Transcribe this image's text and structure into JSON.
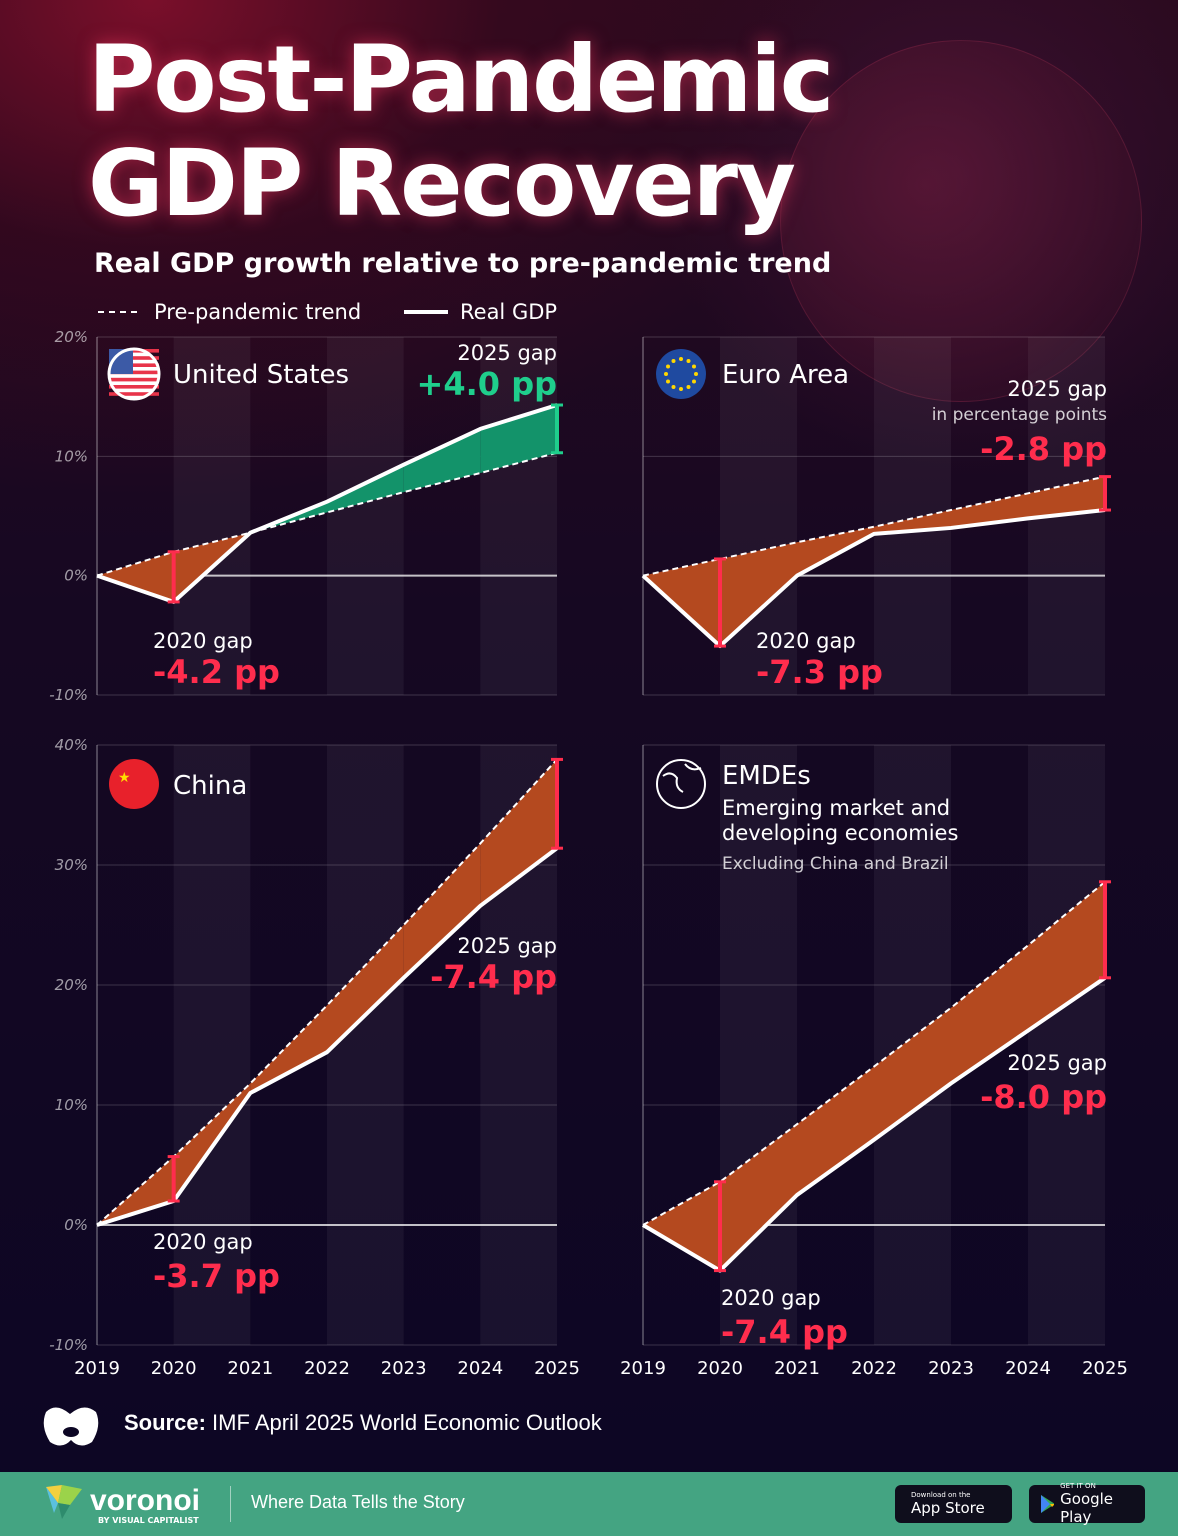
{
  "header": {
    "title_line1": "Post-Pandemic",
    "title_line2": "GDP Recovery",
    "subtitle": "Real GDP growth relative to pre-pandemic trend"
  },
  "legend": {
    "trend": "Pre-pandemic trend",
    "real": "Real GDP"
  },
  "colors": {
    "negative_gap": "#ff2d4d",
    "positive_gap": "#1fce8c",
    "negative_fill": "#b4491f",
    "positive_fill": "#13936a",
    "line": "#ffffff",
    "footer": "#44a482"
  },
  "chart_data": [
    {
      "type": "area",
      "title": "United States",
      "icon": "us-flag-icon",
      "years": [
        "2019",
        "2020",
        "2021",
        "2022",
        "2023",
        "2024",
        "2025"
      ],
      "ylim": [
        -10,
        20
      ],
      "yticks": [
        "-10%",
        "0%",
        "10%",
        "20%"
      ],
      "show_xticks": false,
      "series": [
        {
          "name": "Pre-pandemic trend",
          "style": "dashed",
          "values": [
            0,
            2.0,
            3.6,
            5.3,
            7.0,
            8.6,
            10.3
          ]
        },
        {
          "name": "Real GDP",
          "style": "solid",
          "values": [
            0,
            -2.2,
            3.6,
            6.2,
            9.3,
            12.3,
            14.3
          ]
        }
      ],
      "annotations": {
        "gap2020_label": "2020 gap",
        "gap2020_value": "-4.2 pp",
        "gap2025_label": "2025 gap",
        "gap2025_value": "+4.0 pp"
      }
    },
    {
      "type": "area",
      "title": "Euro Area",
      "icon": "eu-flag-icon",
      "years": [
        "2019",
        "2020",
        "2021",
        "2022",
        "2023",
        "2024",
        "2025"
      ],
      "ylim": [
        -10,
        20
      ],
      "yticks": [],
      "show_xticks": false,
      "series": [
        {
          "name": "Pre-pandemic trend",
          "style": "dashed",
          "values": [
            0,
            1.4,
            2.8,
            4.1,
            5.5,
            6.9,
            8.3
          ]
        },
        {
          "name": "Real GDP",
          "style": "solid",
          "values": [
            0,
            -5.9,
            0.0,
            3.5,
            4.0,
            4.8,
            5.5
          ]
        }
      ],
      "annotations": {
        "gap2020_label": "2020 gap",
        "gap2020_value": "-7.3 pp",
        "gap2025_label": "2025 gap",
        "gap2025_note": "in percentage points",
        "gap2025_value": "-2.8 pp"
      }
    },
    {
      "type": "area",
      "title": "China",
      "icon": "china-flag-icon",
      "years": [
        "2019",
        "2020",
        "2021",
        "2022",
        "2023",
        "2024",
        "2025"
      ],
      "ylim": [
        -10,
        40
      ],
      "yticks": [
        "-10%",
        "0%",
        "10%",
        "20%",
        "30%",
        "40%"
      ],
      "show_xticks": true,
      "series": [
        {
          "name": "Pre-pandemic trend",
          "style": "dashed",
          "values": [
            0,
            5.7,
            11.8,
            18.3,
            25.0,
            31.8,
            38.8
          ]
        },
        {
          "name": "Real GDP",
          "style": "solid",
          "values": [
            0,
            2.0,
            11.0,
            14.4,
            20.6,
            26.6,
            31.4
          ]
        }
      ],
      "annotations": {
        "gap2020_label": "2020 gap",
        "gap2020_value": "-3.7 pp",
        "gap2025_label": "2025 gap",
        "gap2025_value": "-7.4 pp"
      }
    },
    {
      "type": "area",
      "title": "EMDEs",
      "subtitle": "Emerging market and developing economies",
      "note": "Excluding China and Brazil",
      "icon": "globe-icon",
      "years": [
        "2019",
        "2020",
        "2021",
        "2022",
        "2023",
        "2024",
        "2025"
      ],
      "ylim": [
        -10,
        40
      ],
      "yticks": [],
      "show_xticks": true,
      "series": [
        {
          "name": "Pre-pandemic trend",
          "style": "dashed",
          "values": [
            0,
            3.6,
            8.4,
            13.2,
            18.1,
            23.3,
            28.6
          ]
        },
        {
          "name": "Real GDP",
          "style": "solid",
          "values": [
            0,
            -3.8,
            2.5,
            7.1,
            11.8,
            16.2,
            20.6
          ]
        }
      ],
      "annotations": {
        "gap2020_label": "2020 gap",
        "gap2020_value": "-7.4 pp",
        "gap2025_label": "2025 gap",
        "gap2025_value": "-8.0 pp"
      }
    }
  ],
  "source": {
    "label": "Source:",
    "text": "IMF April 2025 World Economic Outlook"
  },
  "footer": {
    "brand": "voronoi",
    "brand_sub": "BY VISUAL CAPITALIST",
    "tagline": "Where Data Tells the Story",
    "appstore_small": "Download on the",
    "appstore_big": "App Store",
    "googleplay_small": "GET IT ON",
    "googleplay_big": "Google Play"
  }
}
